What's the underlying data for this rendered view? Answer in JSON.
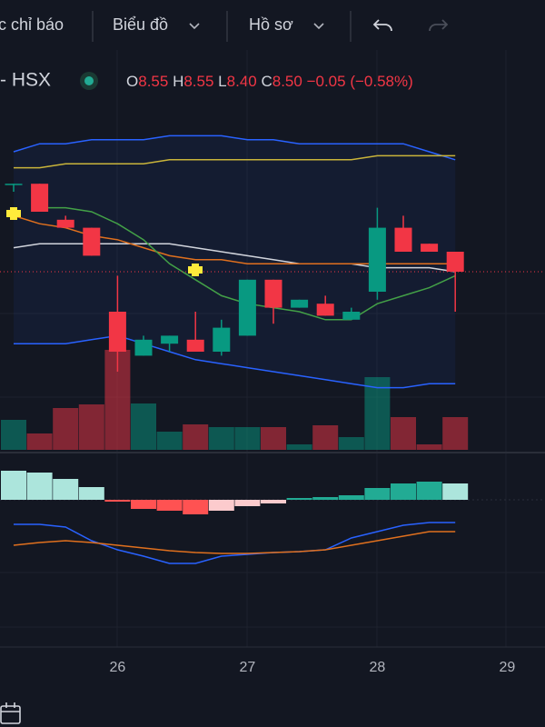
{
  "toolbar": {
    "indicators": "c chỉ báo",
    "chart": "Biểu đồ",
    "profile": "Hồ sơ"
  },
  "legend": {
    "symbol": "- HSX",
    "items": [
      {
        "label": "O",
        "value": "8.55"
      },
      {
        "label": "H",
        "value": "8.55"
      },
      {
        "label": "L",
        "value": "8.40"
      },
      {
        "label": "C",
        "value": "8.50"
      }
    ],
    "change": "−0.05 (−0.58%)"
  },
  "chart_data": {
    "type": "candlestick",
    "categories": [
      null,
      null,
      null,
      null,
      "26",
      null,
      null,
      null,
      null,
      "27",
      null,
      null,
      null,
      null,
      "28",
      null,
      null,
      null,
      null,
      "29"
    ],
    "open": [
      8.72,
      8.72,
      8.63,
      8.61,
      8.4,
      8.29,
      8.32,
      8.33,
      8.3,
      8.34,
      8.48,
      8.41,
      8.42,
      8.38,
      8.45,
      8.61,
      8.57,
      8.55,
      null,
      null
    ],
    "high": [
      8.72,
      8.72,
      8.64,
      8.61,
      8.49,
      8.34,
      8.34,
      8.4,
      8.38,
      8.48,
      8.48,
      8.43,
      8.44,
      8.41,
      8.66,
      8.64,
      8.57,
      8.55,
      null,
      null
    ],
    "low": [
      8.7,
      8.65,
      8.61,
      8.54,
      8.25,
      8.29,
      8.3,
      8.3,
      8.29,
      8.34,
      8.37,
      8.41,
      8.39,
      8.38,
      8.43,
      8.55,
      8.55,
      8.4,
      null,
      null
    ],
    "close": [
      8.72,
      8.65,
      8.61,
      8.54,
      8.3,
      8.33,
      8.34,
      8.3,
      8.36,
      8.48,
      8.41,
      8.43,
      8.39,
      8.4,
      8.61,
      8.55,
      8.55,
      8.5,
      null,
      null
    ],
    "ylim": [
      8.1,
      9.0
    ],
    "up_color": "#089981",
    "down_color": "#f23645",
    "overlays": [
      {
        "color": "#2962ff",
        "values": [
          8.8,
          8.82,
          8.82,
          8.83,
          8.83,
          8.83,
          8.84,
          8.84,
          8.84,
          8.83,
          8.83,
          8.82,
          8.82,
          8.82,
          8.82,
          8.82,
          8.8,
          8.78,
          null,
          null
        ]
      },
      {
        "color": "#2962ff",
        "values": [
          8.32,
          8.32,
          8.32,
          8.33,
          8.34,
          8.32,
          8.3,
          8.28,
          8.27,
          8.26,
          8.25,
          8.24,
          8.23,
          8.22,
          8.21,
          8.21,
          8.22,
          8.22,
          null,
          null
        ]
      },
      {
        "color": "#d1d4dc",
        "values": [
          8.56,
          8.57,
          8.57,
          8.57,
          8.57,
          8.57,
          8.57,
          8.56,
          8.55,
          8.54,
          8.53,
          8.52,
          8.52,
          8.52,
          8.51,
          8.51,
          8.51,
          8.5,
          null,
          null
        ]
      },
      {
        "color": "#e0701e",
        "values": [
          8.64,
          8.62,
          8.61,
          8.59,
          8.58,
          8.56,
          8.54,
          8.53,
          8.53,
          8.52,
          8.52,
          8.52,
          8.52,
          8.52,
          8.52,
          8.52,
          8.52,
          8.52,
          null,
          null
        ]
      },
      {
        "color": "#43a047",
        "values": [
          null,
          8.66,
          8.66,
          8.65,
          8.62,
          8.58,
          8.52,
          8.48,
          8.44,
          8.42,
          8.41,
          8.4,
          8.38,
          8.38,
          8.42,
          8.44,
          8.46,
          8.49,
          null,
          null
        ]
      },
      {
        "color": "#c9b43a",
        "values": [
          8.76,
          8.76,
          8.77,
          8.77,
          8.77,
          8.77,
          8.78,
          8.78,
          8.78,
          8.78,
          8.78,
          8.78,
          8.78,
          8.78,
          8.79,
          8.79,
          8.79,
          8.79,
          null,
          null
        ]
      }
    ],
    "volume": {
      "ylim": [
        0,
        120
      ],
      "values": [
        33,
        18,
        46,
        50,
        110,
        51,
        20,
        28,
        25,
        25,
        25,
        6,
        27,
        14,
        80,
        36,
        6,
        36,
        null,
        null
      ]
    },
    "macd": {
      "ylim": [
        -140,
        50
      ],
      "histogram": [
        32,
        30,
        23,
        14,
        -2,
        -10,
        -12,
        -16,
        -12,
        -7,
        -4,
        2,
        3,
        5,
        13,
        18,
        20,
        18,
        null,
        null
      ],
      "colors": {
        "pos_up": "#22ab94",
        "pos_down": "#ace5dc",
        "neg_down": "#ff5252",
        "neg_up": "#fccbcd"
      },
      "lines": [
        {
          "color": "#2962ff",
          "values": [
            -27,
            -27,
            -30,
            -45,
            -55,
            -62,
            -70,
            -70,
            -62,
            -60,
            -58,
            -57,
            -55,
            -42,
            -35,
            -28,
            -25,
            -25,
            null,
            null
          ]
        },
        {
          "color": "#e0701e",
          "values": [
            -50,
            -47,
            -45,
            -47,
            -50,
            -53,
            -56,
            -58,
            -59,
            -59,
            -58,
            -57,
            -55,
            -50,
            -45,
            -40,
            -35,
            -35,
            null,
            null
          ]
        }
      ]
    }
  }
}
